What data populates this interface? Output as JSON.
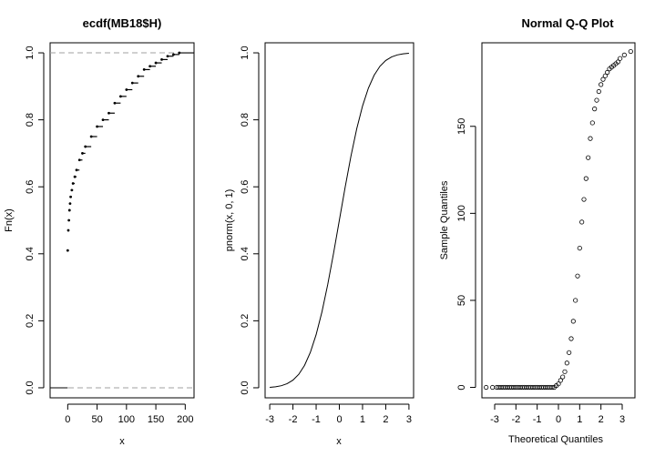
{
  "chart_data": [
    {
      "type": "scatter",
      "subtype": "ecdf",
      "title": "ecdf(MB18$H)",
      "xlabel": "x",
      "ylabel": "Fn(x)",
      "xlim": [
        -30,
        215
      ],
      "ylim": [
        -0.03,
        1.03
      ],
      "x_ticks": [
        0,
        50,
        100,
        150,
        200
      ],
      "y_ticks": [
        0.0,
        0.2,
        0.4,
        0.6,
        0.8,
        1.0
      ],
      "x_tick_labels": [
        "0",
        "50",
        "100",
        "150",
        "200"
      ],
      "y_tick_labels": [
        "0.0",
        "0.2",
        "0.4",
        "0.6",
        "0.8",
        "1.0"
      ],
      "reference_lines": [
        0,
        1
      ],
      "grid": false,
      "series": [
        {
          "x": [
            0,
            1,
            2,
            3,
            4,
            5,
            7,
            9,
            12,
            15,
            20,
            25,
            30,
            40,
            50,
            60,
            70,
            80,
            90,
            100,
            110,
            120,
            130,
            140,
            150,
            160,
            170,
            180,
            190
          ],
          "values": [
            0.41,
            0.47,
            0.5,
            0.53,
            0.55,
            0.57,
            0.59,
            0.61,
            0.63,
            0.65,
            0.68,
            0.7,
            0.72,
            0.75,
            0.78,
            0.8,
            0.82,
            0.85,
            0.87,
            0.89,
            0.91,
            0.93,
            0.95,
            0.96,
            0.97,
            0.98,
            0.99,
            0.995,
            1.0
          ]
        }
      ]
    },
    {
      "type": "line",
      "title": "",
      "xlabel": "x",
      "ylabel": "pnorm(x, 0, 1)",
      "xlim": [
        -3.2,
        3.2
      ],
      "ylim": [
        -0.03,
        1.03
      ],
      "x_ticks": [
        -3,
        -2,
        -1,
        0,
        1,
        2,
        3
      ],
      "y_ticks": [
        0.0,
        0.2,
        0.4,
        0.6,
        0.8,
        1.0
      ],
      "x_tick_labels": [
        "-3",
        "-2",
        "-1",
        "0",
        "1",
        "2",
        "3"
      ],
      "y_tick_labels": [
        "0.0",
        "0.2",
        "0.4",
        "0.6",
        "0.8",
        "1.0"
      ],
      "grid": false,
      "series": [
        {
          "x": [
            -3.0,
            -2.75,
            -2.5,
            -2.25,
            -2.0,
            -1.75,
            -1.5,
            -1.25,
            -1.0,
            -0.75,
            -0.5,
            -0.25,
            0.0,
            0.25,
            0.5,
            0.75,
            1.0,
            1.25,
            1.5,
            1.75,
            2.0,
            2.25,
            2.5,
            2.75,
            3.0
          ],
          "values": [
            0.0013,
            0.003,
            0.0062,
            0.0122,
            0.0228,
            0.0401,
            0.0668,
            0.1056,
            0.1587,
            0.2266,
            0.3085,
            0.4013,
            0.5,
            0.5987,
            0.6915,
            0.7734,
            0.8413,
            0.8944,
            0.9332,
            0.9599,
            0.9772,
            0.9878,
            0.9938,
            0.997,
            0.9987
          ]
        }
      ]
    },
    {
      "type": "scatter",
      "title": "Normal Q-Q Plot",
      "xlabel": "Theoretical Quantiles",
      "ylabel": "Sample Quantiles",
      "xlim": [
        -3.6,
        3.6
      ],
      "ylim": [
        -6,
        198
      ],
      "x_ticks": [
        -3,
        -2,
        -1,
        0,
        1,
        2,
        3
      ],
      "y_ticks": [
        0,
        50,
        100,
        150
      ],
      "x_tick_labels": [
        "-3",
        "-2",
        "-1",
        "0",
        "1",
        "2",
        "3"
      ],
      "y_tick_labels": [
        "0",
        "50",
        "100",
        "150"
      ],
      "grid": false,
      "series": [
        {
          "x": [
            -3.4,
            -3.1,
            -2.9,
            -2.8,
            -2.7,
            -2.6,
            -2.5,
            -2.4,
            -2.3,
            -2.2,
            -2.1,
            -2.0,
            -1.9,
            -1.8,
            -1.7,
            -1.6,
            -1.5,
            -1.4,
            -1.3,
            -1.2,
            -1.1,
            -1.0,
            -0.9,
            -0.8,
            -0.7,
            -0.6,
            -0.5,
            -0.4,
            -0.3,
            -0.2,
            -0.1,
            0.0,
            0.1,
            0.2,
            0.3,
            0.4,
            0.5,
            0.6,
            0.7,
            0.8,
            0.9,
            1.0,
            1.1,
            1.2,
            1.3,
            1.4,
            1.5,
            1.6,
            1.7,
            1.8,
            1.9,
            2.0,
            2.1,
            2.2,
            2.3,
            2.4,
            2.5,
            2.6,
            2.7,
            2.8,
            2.9,
            3.1,
            3.4
          ],
          "values": [
            0,
            0,
            0,
            0,
            0,
            0,
            0,
            0,
            0,
            0,
            0,
            0,
            0,
            0,
            0,
            0,
            0,
            0,
            0,
            0,
            0,
            0,
            0,
            0,
            0,
            0,
            0,
            0,
            0,
            0,
            1,
            2,
            4,
            6,
            9,
            14,
            20,
            28,
            38,
            50,
            64,
            80,
            95,
            108,
            120,
            132,
            143,
            152,
            160,
            165,
            170,
            174,
            177,
            179,
            181,
            183,
            184,
            185,
            186,
            187,
            189,
            191,
            193
          ]
        }
      ]
    }
  ]
}
